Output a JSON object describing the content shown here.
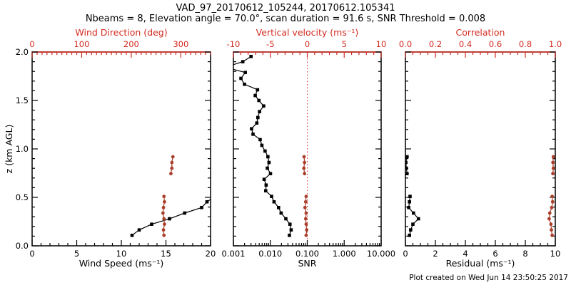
{
  "header": {
    "title": "VAD_97_20170612_105244, 20170612.105341",
    "subtitle": "Nbeams = 8, Elevation angle = 70.0°, scan duration = 91.6 s, SNR Threshold = 0.008"
  },
  "footer": {
    "created": "Plot created on Wed Jun 14 23:50:25 2017"
  },
  "colors": {
    "background": "#ffffff",
    "frame_black": "#000000",
    "axis_red": "#d22b20",
    "marker_red": "#aa3f2b"
  },
  "chart_data": {
    "type": "line",
    "title": "VAD_97_20170612_105244, 20170612.105341",
    "subtitle": "Nbeams = 8, Elevation angle = 70.0°, scan duration = 91.6 s, SNR Threshold = 0.008",
    "y_axis": {
      "label": "z (km AGL)",
      "min": 0,
      "max": 2,
      "ticks": [
        0,
        0.5,
        1,
        1.5,
        2
      ],
      "tick_labels": [
        "0.0",
        "0.5",
        "1.0",
        "1.5",
        "2.0"
      ],
      "minor_step": 0.1
    },
    "panels": [
      {
        "name": "wind",
        "y_show_labels": true,
        "bottom_axis": {
          "label": "Wind Speed (ms⁻¹)",
          "scale": "linear",
          "min": 0,
          "max": 20,
          "ticks": [
            0,
            5,
            10,
            15,
            20
          ],
          "tick_labels": [
            "0",
            "5",
            "10",
            "15",
            "20"
          ],
          "minor_step": 1
        },
        "top_axis": {
          "label": "Wind Direction (deg)",
          "scale": "linear",
          "min": 0,
          "max": 360,
          "ticks": [
            0,
            100,
            200,
            300
          ],
          "tick_labels": [
            "0",
            "100",
            "200",
            "300"
          ],
          "minor_step": 10,
          "zero_line": false
        },
        "series": [
          {
            "id": "wind-speed",
            "axis": "bottom",
            "color": "black",
            "marker": "square",
            "groups": [
              {
                "z": [
                  0.108,
                  0.164,
                  0.223,
                  0.279,
                  0.338,
                  0.395,
                  0.454,
                  0.51
                ],
                "values": [
                  11.2,
                  12.0,
                  13.4,
                  15.4,
                  17.1,
                  19.0,
                  19.6,
                  20.5
                ]
              }
            ]
          },
          {
            "id": "wind-direction",
            "axis": "top",
            "color": "red",
            "marker": "circle",
            "groups": [
              {
                "z": [
                  0.108,
                  0.164,
                  0.223,
                  0.279,
                  0.338,
                  0.395,
                  0.454,
                  0.51
                ],
                "values": [
                  266,
                  265,
                  267,
                  266,
                  264,
                  265,
                  267,
                  266
                ]
              },
              {
                "z": [
                  0.745,
                  0.801,
                  0.86,
                  0.919
                ],
                "values": [
                  280,
                  282,
                  282,
                  284
                ]
              }
            ]
          }
        ]
      },
      {
        "name": "snr",
        "y_show_labels": false,
        "bottom_axis": {
          "label": "SNR",
          "scale": "log",
          "min": 0.001,
          "max": 10,
          "ticks": [
            0.001,
            0.01,
            0.1,
            1,
            10
          ],
          "tick_labels": [
            "0.001",
            "0.010",
            "0.100",
            "1.000",
            "10.000"
          ],
          "minor_step": 0
        },
        "top_axis": {
          "label": "Vertical velocity (ms⁻¹)",
          "scale": "linear",
          "min": -10,
          "max": 10,
          "ticks": [
            -10,
            -5,
            0,
            5,
            10
          ],
          "tick_labels": [
            "-10",
            "-5",
            "0",
            "5",
            "10"
          ],
          "minor_step": 1,
          "zero_line": true
        },
        "series": [
          {
            "id": "snr-profile",
            "axis": "bottom",
            "color": "black",
            "marker": "square",
            "groups": [
              {
                "z": [
                  1.954,
                  1.9,
                  1.843,
                  1.789,
                  1.728,
                  1.667,
                  1.61,
                  1.551,
                  1.5,
                  1.443,
                  1.385,
                  1.324,
                  1.267,
                  1.208,
                  1.152,
                  1.096,
                  1.037,
                  0.978,
                  0.919,
                  0.86,
                  0.801,
                  0.745,
                  0.686,
                  0.627,
                  0.568,
                  0.51,
                  0.454,
                  0.395,
                  0.338,
                  0.279,
                  0.223,
                  0.164,
                  0.108
                ],
                "values": [
                  0.003,
                  0.0018,
                  0.0006,
                  0.0021,
                  0.0016,
                  0.002,
                  0.0045,
                  0.0039,
                  0.0049,
                  0.0066,
                  0.0051,
                  0.0046,
                  0.0043,
                  0.0031,
                  0.0034,
                  0.0053,
                  0.0059,
                  0.0072,
                  0.0086,
                  0.0092,
                  0.0083,
                  0.0101,
                  0.0068,
                  0.0077,
                  0.0075,
                  0.0108,
                  0.0126,
                  0.0167,
                  0.0196,
                  0.0263,
                  0.034,
                  0.0366,
                  0.0328
                ]
              }
            ]
          },
          {
            "id": "vertical-velocity",
            "axis": "top",
            "color": "red",
            "marker": "circle",
            "groups": [
              {
                "z": [
                  0.108,
                  0.164,
                  0.223,
                  0.279,
                  0.338,
                  0.395,
                  0.454,
                  0.51
                ],
                "values": [
                  -0.15,
                  -0.08,
                  -0.15,
                  -0.21,
                  -0.15,
                  -0.31,
                  -0.21,
                  -0.15
                ]
              },
              {
                "z": [
                  0.745,
                  0.801,
                  0.86,
                  0.919
                ],
                "values": [
                  -0.37,
                  -0.46,
                  -0.37,
                  -0.43
                ]
              }
            ]
          }
        ]
      },
      {
        "name": "residual",
        "y_show_labels": false,
        "bottom_axis": {
          "label": "Residual (ms⁻¹)",
          "scale": "linear",
          "min": 0,
          "max": 10,
          "ticks": [
            0,
            2,
            4,
            6,
            8,
            10
          ],
          "tick_labels": [
            "0",
            "2",
            "4",
            "6",
            "8",
            "10"
          ],
          "minor_step": 0.5
        },
        "top_axis": {
          "label": "Correlation",
          "scale": "linear",
          "min": 0,
          "max": 1,
          "ticks": [
            0,
            0.2,
            0.4,
            0.6,
            0.8,
            1
          ],
          "tick_labels": [
            "0.0",
            "0.2",
            "0.4",
            "0.6",
            "0.8",
            "1.0"
          ],
          "minor_step": 0.05,
          "zero_line": false
        },
        "series": [
          {
            "id": "residual-profile",
            "axis": "bottom",
            "color": "black",
            "marker": "square",
            "groups": [
              {
                "z": [
                  0.108,
                  0.164,
                  0.223,
                  0.279,
                  0.338,
                  0.395,
                  0.454,
                  0.51
                ],
                "values": [
                  0.27,
                  0.35,
                  0.5,
                  0.87,
                  0.54,
                  0.22,
                  0.27,
                  0.31
                ]
              },
              {
                "z": [
                  0.745,
                  0.801,
                  0.86,
                  0.919
                ],
                "values": [
                  0.11,
                  0.06,
                  0.03,
                  0.11
                ]
              }
            ]
          },
          {
            "id": "correlation-profile",
            "axis": "top",
            "color": "red",
            "marker": "circle",
            "groups": [
              {
                "z": [
                  0.108,
                  0.164,
                  0.223,
                  0.279,
                  0.338,
                  0.395,
                  0.454,
                  0.51
                ],
                "values": [
                  0.979,
                  0.974,
                  0.971,
                  0.959,
                  0.963,
                  0.976,
                  0.982,
                  0.979
                ]
              },
              {
                "z": [
                  0.745,
                  0.801,
                  0.86,
                  0.919
                ],
                "values": [
                  0.984,
                  0.987,
                  0.984,
                  0.987
                ]
              }
            ]
          }
        ]
      }
    ]
  }
}
